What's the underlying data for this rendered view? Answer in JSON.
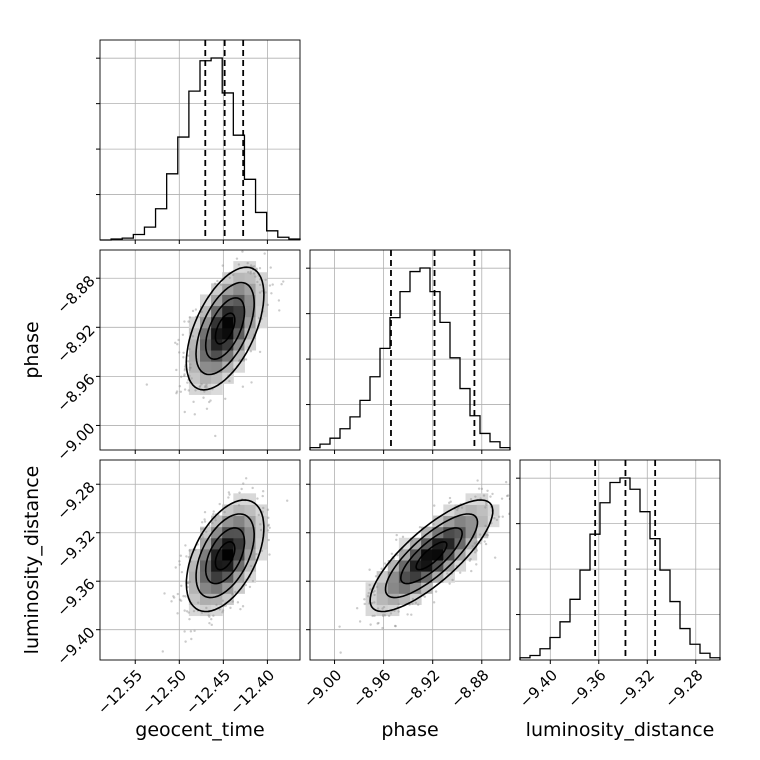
{
  "chart_data": {
    "type": "corner",
    "parameters": [
      "geocent_time",
      "phase",
      "luminosity_distance"
    ],
    "labels": {
      "geocent_time": "geocent_time",
      "phase": "phase",
      "luminosity_distance": "luminosity_distance"
    },
    "ranges": {
      "geocent_time": [
        -12.59,
        -12.363
      ],
      "phase": [
        -9.02,
        -8.857
      ],
      "luminosity_distance": [
        -9.425,
        -9.26
      ]
    },
    "ticks": {
      "geocent_time": [
        -12.55,
        -12.5,
        -12.45,
        -12.4
      ],
      "phase": [
        -9.0,
        -8.96,
        -8.92,
        -8.88
      ],
      "luminosity_distance": [
        -9.4,
        -9.36,
        -9.32,
        -9.28
      ]
    },
    "tick_labels": {
      "geocent_time": [
        "−12.55",
        "−12.50",
        "−12.45",
        "−12.40"
      ],
      "phase": [
        "−9.00",
        "−8.96",
        "−8.92",
        "−8.88"
      ],
      "luminosity_distance": [
        "−9.40",
        "−9.36",
        "−9.32",
        "−9.28"
      ]
    },
    "quantiles": {
      "geocent_time": [
        -12.4705,
        -12.4485,
        -12.4275
      ],
      "phase": [
        -8.954,
        -8.9185,
        -8.886
      ],
      "luminosity_distance": [
        -9.363,
        -9.338,
        -9.3135
      ]
    },
    "histograms": {
      "geocent_time": [
        0,
        1,
        2,
        6,
        14,
        34,
        72,
        112,
        162,
        195,
        198,
        160,
        114,
        66,
        30,
        10,
        3,
        1
      ],
      "phase": [
        2,
        5,
        10,
        18,
        28,
        42,
        62,
        86,
        112,
        134,
        151,
        154,
        134,
        108,
        78,
        52,
        29,
        14,
        7,
        2
      ],
      "luminosity_distance": [
        2,
        4,
        10,
        20,
        34,
        54,
        80,
        112,
        140,
        158,
        162,
        152,
        132,
        108,
        80,
        52,
        28,
        14,
        6,
        2
      ]
    },
    "means": {
      "geocent_time": -12.448,
      "phase": -8.921,
      "luminosity_distance": -9.339
    },
    "sigmas": {
      "geocent_time": 0.022,
      "phase": 0.025,
      "luminosity_distance": 0.023
    },
    "correlations": {
      "phase|geocent_time": 0.55,
      "luminosity_distance|geocent_time": 0.5,
      "luminosity_distance|phase": 0.8
    },
    "contour_levels_sigma": [
      0.5,
      1.0,
      1.5,
      2.0
    ],
    "grid": true,
    "colors": {
      "hist": "#000000",
      "quantile": "#000000",
      "grid": "#b0b0b0",
      "scatter": "#8c8c8c",
      "contour": "#000000"
    }
  }
}
